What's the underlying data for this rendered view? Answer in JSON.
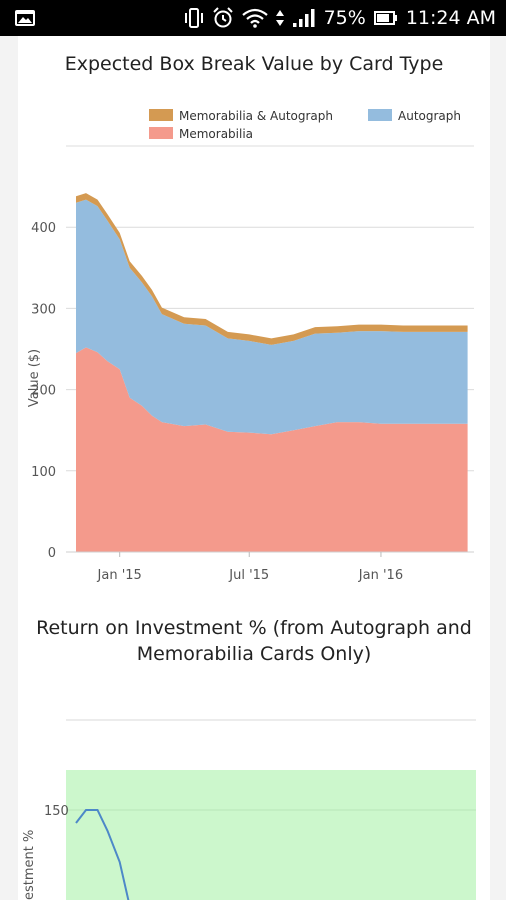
{
  "status_bar": {
    "battery_percent": "75%",
    "time": "11:24 AM",
    "icons": [
      "image-notification-icon",
      "vibrate-icon",
      "alarm-icon",
      "wifi-icon",
      "data-arrows-icon",
      "signal-icon",
      "battery-icon"
    ]
  },
  "chart_data": [
    {
      "type": "area",
      "stacked": true,
      "title": "Expected Box Break Value by Card Type",
      "ylabel": "Value ($)",
      "xlabel": "",
      "ylim": [
        0,
        500
      ],
      "yticks": [
        "0",
        "100",
        "200",
        "300",
        "400"
      ],
      "xticks": [
        "Jan '15",
        "Jul '15",
        "Jan '16"
      ],
      "grid": true,
      "legend": "top-right",
      "colors": {
        "Memorabilia": "#f49a8c",
        "Autograph": "#94bcde",
        "Memorabilia & Autograph": "#d49a52"
      },
      "legend_entries": [
        "Memorabilia & Autograph",
        "Autograph",
        "Memorabilia"
      ],
      "x": [
        "2014-11-01",
        "2014-11-15",
        "2014-12-01",
        "2014-12-15",
        "2015-01-01",
        "2015-01-15",
        "2015-02-01",
        "2015-02-15",
        "2015-03-01",
        "2015-04-01",
        "2015-05-01",
        "2015-06-01",
        "2015-07-01",
        "2015-08-01",
        "2015-09-01",
        "2015-10-01",
        "2015-11-01",
        "2015-12-01",
        "2016-01-01",
        "2016-02-01",
        "2016-03-01",
        "2016-04-01",
        "2016-05-01"
      ],
      "series": [
        {
          "name": "Memorabilia",
          "values": [
            245,
            252,
            246,
            235,
            225,
            190,
            180,
            168,
            160,
            155,
            157,
            148,
            147,
            145,
            150,
            155,
            160,
            160,
            158,
            158,
            158,
            158,
            158
          ]
        },
        {
          "name": "Autograph",
          "values": [
            185,
            182,
            180,
            173,
            160,
            160,
            152,
            147,
            133,
            126,
            122,
            115,
            113,
            110,
            110,
            114,
            110,
            112,
            114,
            113,
            113,
            113,
            113
          ]
        },
        {
          "name": "Memorabilia & Autograph",
          "values": [
            8,
            8,
            8,
            8,
            8,
            8,
            8,
            8,
            8,
            8,
            8,
            8,
            8,
            8,
            8,
            8,
            8,
            8,
            8,
            8,
            8,
            8,
            8
          ]
        }
      ]
    },
    {
      "type": "line",
      "title": "Return on Investment % (from Autograph and Memorabilia Cards Only)",
      "ylabel": "Return on Investment %",
      "ylabel_visible": "estment %",
      "yticks": [
        "150"
      ],
      "background": "#ccf7cc",
      "line_color": "#4d88c8",
      "x": [
        "2014-11-01",
        "2014-11-15",
        "2014-12-01",
        "2014-12-15",
        "2015-01-01",
        "2015-01-15",
        "2015-02-01"
      ],
      "values": [
        145,
        150,
        150,
        142,
        130,
        110,
        90
      ]
    }
  ]
}
